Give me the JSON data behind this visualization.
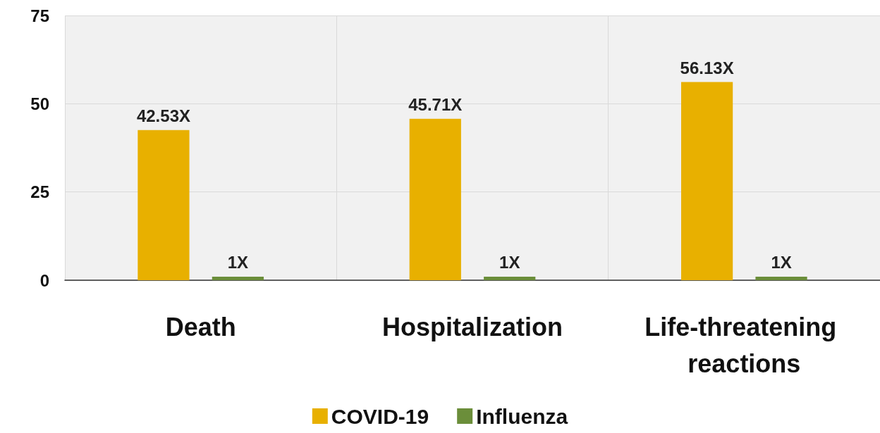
{
  "chart_data": {
    "type": "bar",
    "categories": [
      "Death",
      "Hospitalization",
      "Life-threatening reactions"
    ],
    "series": [
      {
        "name": "COVID-19",
        "color": "#e8b000",
        "values": [
          42.53,
          45.71,
          56.13
        ],
        "value_labels": [
          "42.53X",
          "45.71X",
          "56.13X"
        ]
      },
      {
        "name": "Influenza",
        "color": "#6b8e3a",
        "values": [
          1,
          1,
          1
        ],
        "value_labels": [
          "1X",
          "1X",
          "1X"
        ]
      }
    ],
    "ylim": [
      0,
      75
    ],
    "yticks": [
      0,
      25,
      50,
      75
    ],
    "grid": true,
    "legend": "bottom"
  }
}
